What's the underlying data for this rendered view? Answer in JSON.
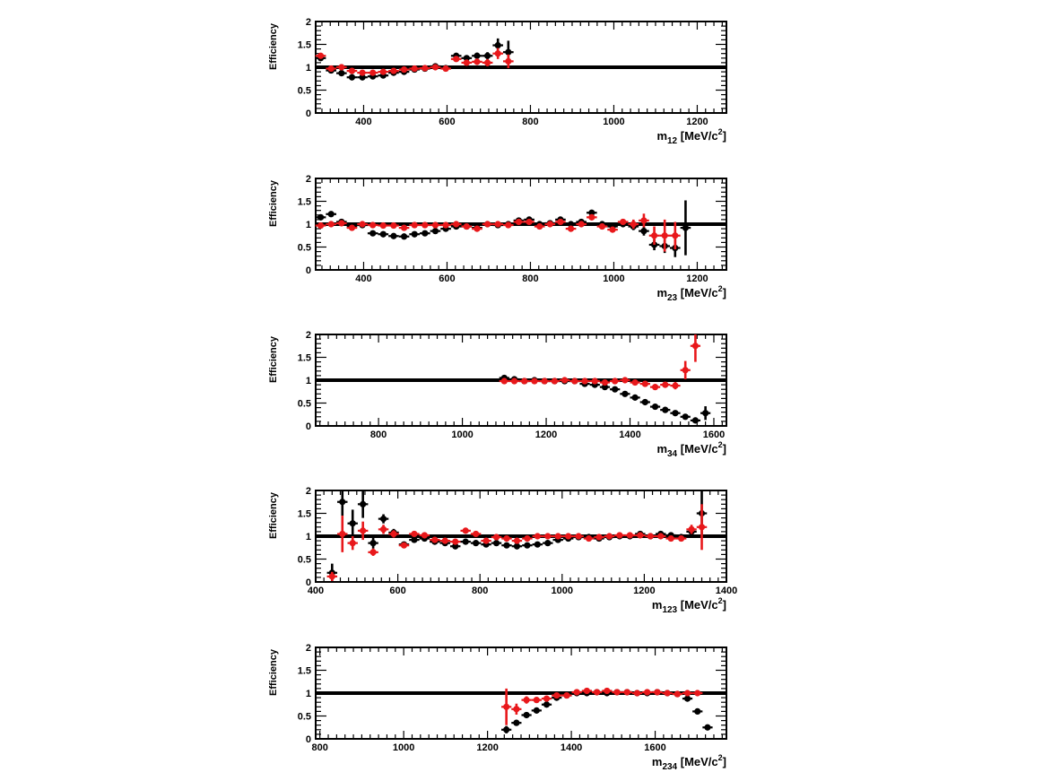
{
  "chart_data": [
    {
      "type": "scatter",
      "ylabel": "Efficiency",
      "xlabel": {
        "base": "m",
        "sub": "12",
        "unit": " [MeV/c",
        "sup": "2",
        "end": "]"
      },
      "xlim": [
        285,
        1270
      ],
      "ylim": [
        0,
        2
      ],
      "xticks": [
        400,
        600,
        800,
        1000,
        1200
      ],
      "yticks": [
        0,
        0.5,
        1,
        1.5,
        2
      ],
      "yticklabels": [
        "0",
        "0.5",
        "1",
        "1.5",
        "2"
      ],
      "reference_line": 1,
      "series": [
        {
          "color": "#000000",
          "binwidth": 25,
          "x": [
            297,
            322,
            347,
            372,
            397,
            422,
            447,
            472,
            497,
            522,
            547,
            572,
            597,
            622,
            647,
            672,
            697,
            722,
            747
          ],
          "y": [
            1.2,
            0.93,
            0.87,
            0.78,
            0.78,
            0.8,
            0.82,
            0.88,
            0.9,
            0.95,
            0.97,
            1.02,
            0.98,
            1.25,
            1.2,
            1.25,
            1.25,
            1.48,
            1.33
          ],
          "err": [
            0.05,
            0.04,
            0.04,
            0.04,
            0.04,
            0.04,
            0.04,
            0.04,
            0.04,
            0.04,
            0.04,
            0.05,
            0.05,
            0.06,
            0.06,
            0.07,
            0.08,
            0.15,
            0.25
          ]
        },
        {
          "color": "#e8181b",
          "binwidth": 25,
          "x": [
            297,
            322,
            347,
            372,
            397,
            422,
            447,
            472,
            497,
            522,
            547,
            572,
            597,
            622,
            647,
            672,
            697,
            722,
            747
          ],
          "y": [
            1.25,
            0.97,
            1.0,
            0.92,
            0.88,
            0.88,
            0.9,
            0.92,
            0.95,
            0.97,
            0.98,
            1.0,
            0.97,
            1.18,
            1.1,
            1.12,
            1.1,
            1.3,
            1.13
          ],
          "err": [
            0.05,
            0.04,
            0.04,
            0.04,
            0.04,
            0.04,
            0.04,
            0.04,
            0.04,
            0.04,
            0.04,
            0.05,
            0.05,
            0.06,
            0.06,
            0.07,
            0.08,
            0.12,
            0.15
          ]
        }
      ]
    },
    {
      "type": "scatter",
      "ylabel": "Efficiency",
      "xlabel": {
        "base": "m",
        "sub": "23",
        "unit": " [MeV/c",
        "sup": "2",
        "end": "]"
      },
      "xlim": [
        285,
        1270
      ],
      "ylim": [
        0,
        2
      ],
      "xticks": [
        400,
        600,
        800,
        1000,
        1200
      ],
      "yticks": [
        0,
        0.5,
        1,
        1.5,
        2
      ],
      "yticklabels": [
        "0",
        "0.5",
        "1",
        "1.5",
        "2"
      ],
      "reference_line": 1,
      "series": [
        {
          "color": "#000000",
          "binwidth": 25,
          "x": [
            297,
            322,
            347,
            372,
            397,
            422,
            447,
            472,
            497,
            522,
            547,
            572,
            597,
            622,
            647,
            672,
            697,
            722,
            747,
            772,
            797,
            822,
            847,
            872,
            897,
            922,
            947,
            972,
            997,
            1022,
            1047,
            1072,
            1097,
            1122,
            1147,
            1172
          ],
          "y": [
            1.15,
            1.22,
            1.05,
            0.95,
            0.98,
            0.8,
            0.78,
            0.74,
            0.73,
            0.78,
            0.8,
            0.85,
            0.9,
            0.95,
            0.95,
            0.92,
            1.0,
            0.98,
            1.0,
            1.08,
            1.1,
            1.0,
            1.02,
            1.1,
            1.0,
            1.05,
            1.25,
            1.0,
            0.95,
            1.0,
            0.95,
            0.85,
            0.55,
            0.52,
            0.48,
            0.92
          ],
          "err": [
            0.04,
            0.04,
            0.04,
            0.04,
            0.04,
            0.03,
            0.03,
            0.03,
            0.03,
            0.03,
            0.03,
            0.03,
            0.03,
            0.03,
            0.03,
            0.03,
            0.03,
            0.03,
            0.03,
            0.04,
            0.04,
            0.04,
            0.04,
            0.04,
            0.04,
            0.05,
            0.06,
            0.05,
            0.05,
            0.06,
            0.08,
            0.1,
            0.12,
            0.15,
            0.2,
            0.6
          ]
        },
        {
          "color": "#e8181b",
          "binwidth": 25,
          "x": [
            297,
            322,
            347,
            372,
            397,
            422,
            447,
            472,
            497,
            522,
            547,
            572,
            597,
            622,
            647,
            672,
            697,
            722,
            747,
            772,
            797,
            822,
            847,
            872,
            897,
            922,
            947,
            972,
            997,
            1022,
            1047,
            1072,
            1097,
            1122,
            1147
          ],
          "y": [
            0.97,
            1.0,
            1.02,
            0.92,
            1.0,
            0.98,
            0.97,
            0.97,
            0.92,
            0.98,
            0.98,
            0.98,
            0.98,
            1.0,
            0.95,
            0.9,
            1.0,
            1.0,
            0.98,
            1.05,
            1.05,
            0.95,
            1.0,
            1.05,
            0.9,
            1.0,
            1.15,
            0.95,
            0.88,
            1.05,
            1.0,
            1.08,
            0.75,
            0.75,
            0.75
          ],
          "err": [
            0.04,
            0.04,
            0.04,
            0.04,
            0.04,
            0.03,
            0.03,
            0.03,
            0.03,
            0.03,
            0.03,
            0.03,
            0.03,
            0.03,
            0.03,
            0.03,
            0.03,
            0.03,
            0.03,
            0.04,
            0.04,
            0.04,
            0.04,
            0.04,
            0.04,
            0.05,
            0.06,
            0.05,
            0.05,
            0.06,
            0.1,
            0.15,
            0.2,
            0.35,
            0.3
          ]
        }
      ]
    },
    {
      "type": "scatter",
      "ylabel": "Efficiency",
      "xlabel": {
        "base": "m",
        "sub": "34",
        "unit": " [MeV/c",
        "sup": "2",
        "end": "]"
      },
      "xlim": [
        650,
        1630
      ],
      "ylim": [
        0,
        2
      ],
      "xticks": [
        800,
        1000,
        1200,
        1400,
        1600
      ],
      "yticks": [
        0,
        0.5,
        1,
        1.5,
        2
      ],
      "yticklabels": [
        "0",
        "0.5",
        "1",
        "1.5",
        "2"
      ],
      "reference_line": 1,
      "series": [
        {
          "color": "#000000",
          "binwidth": 24,
          "x": [
            1100,
            1124,
            1148,
            1172,
            1196,
            1220,
            1244,
            1268,
            1292,
            1316,
            1340,
            1364,
            1388,
            1412,
            1436,
            1460,
            1484,
            1508,
            1532,
            1556,
            1580
          ],
          "y": [
            1.05,
            1.02,
            0.98,
            1.0,
            0.98,
            0.98,
            0.98,
            0.98,
            0.92,
            0.9,
            0.85,
            0.8,
            0.7,
            0.62,
            0.52,
            0.42,
            0.35,
            0.28,
            0.2,
            0.12,
            0.28
          ],
          "err": [
            0.03,
            0.03,
            0.03,
            0.03,
            0.03,
            0.03,
            0.03,
            0.03,
            0.03,
            0.03,
            0.03,
            0.03,
            0.03,
            0.03,
            0.03,
            0.03,
            0.03,
            0.03,
            0.03,
            0.05,
            0.15
          ]
        },
        {
          "color": "#e8181b",
          "binwidth": 24,
          "x": [
            1100,
            1124,
            1148,
            1172,
            1196,
            1220,
            1244,
            1268,
            1292,
            1316,
            1340,
            1364,
            1388,
            1412,
            1436,
            1460,
            1484,
            1508,
            1532,
            1556
          ],
          "y": [
            0.98,
            0.98,
            0.98,
            0.98,
            0.98,
            0.98,
            1.0,
            0.98,
            0.98,
            0.98,
            0.95,
            0.98,
            1.0,
            0.95,
            0.92,
            0.85,
            0.9,
            0.88,
            1.22,
            1.75
          ],
          "err": [
            0.03,
            0.03,
            0.03,
            0.03,
            0.03,
            0.03,
            0.03,
            0.03,
            0.03,
            0.03,
            0.03,
            0.03,
            0.03,
            0.03,
            0.04,
            0.05,
            0.06,
            0.08,
            0.2,
            0.35
          ]
        }
      ]
    },
    {
      "type": "scatter",
      "ylabel": "Efficiency",
      "xlabel": {
        "base": "m",
        "sub": "123",
        "unit": " [MeV/c",
        "sup": "2",
        "end": "]"
      },
      "xlim": [
        400,
        1400
      ],
      "ylim": [
        0,
        2
      ],
      "xticks": [
        400,
        600,
        800,
        1000,
        1200,
        1400
      ],
      "yticks": [
        0,
        0.5,
        1,
        1.5,
        2
      ],
      "yticklabels": [
        "0",
        "0.5",
        "1",
        "1.5",
        "2"
      ],
      "reference_line": 1,
      "series": [
        {
          "color": "#000000",
          "binwidth": 25,
          "x": [
            440,
            465,
            490,
            515,
            540,
            565,
            590,
            615,
            640,
            665,
            690,
            715,
            740,
            765,
            790,
            815,
            840,
            865,
            890,
            915,
            940,
            965,
            990,
            1015,
            1040,
            1065,
            1090,
            1115,
            1140,
            1165,
            1190,
            1215,
            1240,
            1265,
            1290,
            1315,
            1340
          ],
          "y": [
            0.2,
            1.75,
            1.28,
            1.7,
            0.85,
            1.38,
            1.08,
            0.82,
            0.92,
            0.95,
            0.88,
            0.85,
            0.78,
            0.88,
            0.85,
            0.82,
            0.85,
            0.8,
            0.78,
            0.8,
            0.82,
            0.85,
            0.92,
            0.95,
            0.98,
            0.98,
            0.95,
            0.98,
            1.0,
            1.0,
            1.05,
            1.0,
            1.05,
            1.02,
            0.98,
            1.1,
            1.5
          ],
          "err": [
            0.2,
            0.3,
            0.3,
            0.3,
            0.12,
            0.1,
            0.08,
            0.05,
            0.05,
            0.04,
            0.04,
            0.04,
            0.04,
            0.04,
            0.04,
            0.03,
            0.03,
            0.03,
            0.03,
            0.03,
            0.03,
            0.03,
            0.03,
            0.03,
            0.03,
            0.03,
            0.03,
            0.03,
            0.03,
            0.03,
            0.03,
            0.03,
            0.04,
            0.05,
            0.06,
            0.1,
            0.5
          ]
        },
        {
          "color": "#e8181b",
          "binwidth": 25,
          "x": [
            440,
            465,
            490,
            515,
            540,
            565,
            590,
            615,
            640,
            665,
            690,
            715,
            740,
            765,
            790,
            815,
            840,
            865,
            890,
            915,
            940,
            965,
            990,
            1015,
            1040,
            1065,
            1090,
            1115,
            1140,
            1165,
            1190,
            1215,
            1240,
            1265,
            1290,
            1315,
            1340
          ],
          "y": [
            0.12,
            1.05,
            0.85,
            1.12,
            0.65,
            1.15,
            1.05,
            0.8,
            1.05,
            1.02,
            0.92,
            0.9,
            0.88,
            1.12,
            1.05,
            0.9,
            0.98,
            0.95,
            0.9,
            0.95,
            1.0,
            1.0,
            1.0,
            1.0,
            1.0,
            0.95,
            0.98,
            1.0,
            1.02,
            1.02,
            1.02,
            1.0,
            1.0,
            0.95,
            0.95,
            1.15,
            1.2
          ],
          "err": [
            0.1,
            0.4,
            0.15,
            0.2,
            0.08,
            0.1,
            0.08,
            0.05,
            0.05,
            0.04,
            0.04,
            0.04,
            0.04,
            0.04,
            0.04,
            0.03,
            0.03,
            0.03,
            0.03,
            0.03,
            0.03,
            0.03,
            0.03,
            0.03,
            0.03,
            0.03,
            0.03,
            0.03,
            0.03,
            0.03,
            0.03,
            0.03,
            0.04,
            0.05,
            0.06,
            0.1,
            0.5
          ]
        }
      ]
    },
    {
      "type": "scatter",
      "ylabel": "Efficiency",
      "xlabel": {
        "base": "m",
        "sub": "234",
        "unit": " [MeV/c",
        "sup": "2",
        "end": "]"
      },
      "xlim": [
        790,
        1770
      ],
      "ylim": [
        0,
        2
      ],
      "xticks": [
        800,
        1000,
        1200,
        1400,
        1600
      ],
      "yticks": [
        0,
        0.5,
        1,
        1.5,
        2
      ],
      "yticklabels": [
        "0",
        "0.5",
        "1",
        "1.5",
        "2"
      ],
      "reference_line": 1,
      "series": [
        {
          "color": "#000000",
          "binwidth": 24,
          "x": [
            1245,
            1269,
            1293,
            1317,
            1341,
            1365,
            1389,
            1413,
            1437,
            1461,
            1485,
            1509,
            1533,
            1557,
            1581,
            1605,
            1629,
            1653,
            1677,
            1701,
            1725
          ],
          "y": [
            0.2,
            0.35,
            0.52,
            0.62,
            0.75,
            0.9,
            0.95,
            1.0,
            1.0,
            1.02,
            1.0,
            1.02,
            1.02,
            1.0,
            1.0,
            1.02,
            1.0,
            0.98,
            0.88,
            0.6,
            0.25
          ],
          "err": [
            0.08,
            0.04,
            0.04,
            0.03,
            0.03,
            0.03,
            0.03,
            0.03,
            0.03,
            0.03,
            0.03,
            0.03,
            0.03,
            0.03,
            0.03,
            0.03,
            0.03,
            0.03,
            0.03,
            0.03,
            0.03
          ]
        },
        {
          "color": "#e8181b",
          "binwidth": 24,
          "x": [
            1245,
            1269,
            1293,
            1317,
            1341,
            1365,
            1389,
            1413,
            1437,
            1461,
            1485,
            1509,
            1533,
            1557,
            1581,
            1605,
            1629,
            1653,
            1677,
            1701
          ],
          "y": [
            0.7,
            0.65,
            0.85,
            0.85,
            0.88,
            0.95,
            0.95,
            1.02,
            1.05,
            1.02,
            1.05,
            1.02,
            1.02,
            1.0,
            1.02,
            1.02,
            1.0,
            0.98,
            1.0,
            1.0
          ],
          "err": [
            0.4,
            0.12,
            0.08,
            0.06,
            0.05,
            0.04,
            0.03,
            0.03,
            0.03,
            0.03,
            0.03,
            0.03,
            0.03,
            0.03,
            0.03,
            0.03,
            0.03,
            0.03,
            0.03,
            0.03
          ]
        }
      ]
    }
  ]
}
